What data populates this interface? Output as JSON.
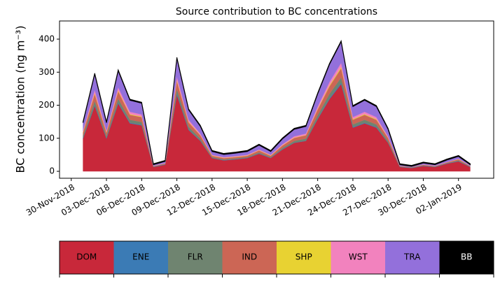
{
  "chart_data": {
    "type": "stacked_area",
    "title": "Source contribution to BC concentrations",
    "y_label": "BC concentration (ng m⁻³)",
    "x": [
      "2018-12-01",
      "2018-12-02",
      "2018-12-03",
      "2018-12-04",
      "2018-12-05",
      "2018-12-06",
      "2018-12-07",
      "2018-12-08",
      "2018-12-09",
      "2018-12-10",
      "2018-12-11",
      "2018-12-12",
      "2018-12-13",
      "2018-12-14",
      "2018-12-15",
      "2018-12-16",
      "2018-12-17",
      "2018-12-18",
      "2018-12-19",
      "2018-12-20",
      "2018-12-21",
      "2018-12-22",
      "2018-12-23",
      "2018-12-24",
      "2018-12-25",
      "2018-12-26",
      "2018-12-27",
      "2018-12-28",
      "2018-12-29",
      "2018-12-30",
      "2018-12-31",
      "2019-01-01",
      "2019-01-02",
      "2019-01-03"
    ],
    "series": [
      {
        "name": "DOM",
        "color": "#c8283a",
        "values": [
          99,
          198,
          99,
          205,
          145,
          139,
          13,
          20,
          231,
          125,
          92,
          40,
          33,
          36,
          40,
          53,
          40,
          66,
          86,
          92,
          158,
          218,
          264,
          132,
          145,
          132,
          86,
          13,
          10,
          16,
          13,
          23,
          30,
          13
        ]
      },
      {
        "name": "ENE",
        "color": "#3b7bb5",
        "values": [
          2,
          3,
          2,
          3,
          2,
          2,
          1,
          1,
          4,
          2,
          1,
          1,
          1,
          1,
          1,
          1,
          1,
          1,
          1,
          1,
          2,
          3,
          4,
          2,
          2,
          2,
          1,
          1,
          1,
          1,
          1,
          1,
          1,
          1
        ]
      },
      {
        "name": "FLR",
        "color": "#6f8470",
        "values": [
          6,
          12,
          6,
          12,
          9,
          8,
          1,
          1,
          14,
          8,
          6,
          2,
          2,
          2,
          2,
          3,
          2,
          4,
          5,
          6,
          10,
          13,
          16,
          8,
          9,
          8,
          5,
          1,
          1,
          1,
          1,
          1,
          2,
          1
        ]
      },
      {
        "name": "IND",
        "color": "#cc6655",
        "values": [
          10,
          21,
          10,
          22,
          15,
          15,
          1,
          2,
          24,
          13,
          10,
          4,
          4,
          4,
          4,
          6,
          4,
          7,
          9,
          10,
          17,
          23,
          28,
          14,
          15,
          14,
          9,
          1,
          1,
          2,
          1,
          2,
          3,
          1
        ]
      },
      {
        "name": "SHP",
        "color": "#e8d232",
        "values": [
          2,
          3,
          2,
          3,
          2,
          2,
          0,
          0,
          3,
          2,
          1,
          1,
          1,
          1,
          1,
          1,
          1,
          1,
          1,
          1,
          2,
          3,
          4,
          2,
          2,
          2,
          1,
          0,
          0,
          0,
          0,
          0,
          1,
          0
        ]
      },
      {
        "name": "WST",
        "color": "#f282be",
        "values": [
          4,
          9,
          4,
          9,
          7,
          6,
          1,
          1,
          10,
          6,
          4,
          2,
          2,
          2,
          2,
          2,
          2,
          3,
          4,
          4,
          7,
          10,
          12,
          6,
          7,
          6,
          4,
          1,
          0,
          1,
          1,
          1,
          1,
          1
        ]
      },
      {
        "name": "TRA",
        "color": "#9370db",
        "values": [
          24,
          48,
          24,
          50,
          35,
          34,
          3,
          5,
          56,
          30,
          22,
          10,
          8,
          9,
          10,
          13,
          10,
          16,
          21,
          22,
          38,
          53,
          64,
          32,
          35,
          32,
          21,
          3,
          2,
          4,
          3,
          6,
          7,
          3
        ]
      },
      {
        "name": "BB",
        "color": "#000000",
        "values": [
          3,
          3,
          3,
          3,
          3,
          3,
          3,
          3,
          3,
          3,
          3,
          3,
          3,
          3,
          3,
          3,
          3,
          3,
          3,
          3,
          3,
          3,
          3,
          3,
          3,
          3,
          3,
          3,
          3,
          3,
          3,
          3,
          3,
          3
        ]
      }
    ],
    "xlim": [
      "2018-11-29",
      "2019-01-05"
    ],
    "xticks": [
      {
        "value": "2018-11-30",
        "label": "30-Nov-2018"
      },
      {
        "value": "2018-12-03",
        "label": "03-Dec-2018"
      },
      {
        "value": "2018-12-06",
        "label": "06-Dec-2018"
      },
      {
        "value": "2018-12-09",
        "label": "09-Dec-2018"
      },
      {
        "value": "2018-12-12",
        "label": "12-Dec-2018"
      },
      {
        "value": "2018-12-15",
        "label": "15-Dec-2018"
      },
      {
        "value": "2018-12-18",
        "label": "18-Dec-2018"
      },
      {
        "value": "2018-12-21",
        "label": "21-Dec-2018"
      },
      {
        "value": "2018-12-24",
        "label": "24-Dec-2018"
      },
      {
        "value": "2018-12-27",
        "label": "27-Dec-2018"
      },
      {
        "value": "2018-12-30",
        "label": "30-Dec-2018"
      },
      {
        "value": "2019-01-02",
        "label": "02-Jan-2019"
      }
    ],
    "ylim": [
      -21,
      455
    ],
    "yticks": [
      0,
      100,
      200,
      300,
      400
    ]
  }
}
